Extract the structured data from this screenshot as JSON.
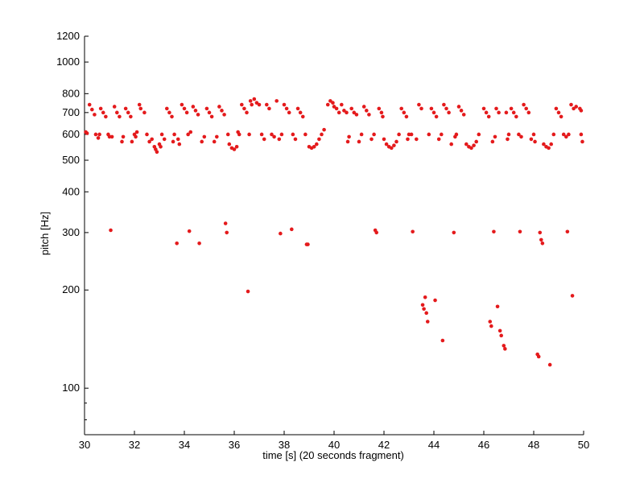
{
  "chart_data": {
    "type": "scatter",
    "title": "",
    "xlabel": "time [s] (20 seconds fragment)",
    "ylabel": "pitch [Hz]",
    "xlim": [
      30,
      50
    ],
    "ylim": [
      72,
      1200
    ],
    "yscale": "log",
    "xticks": [
      "30",
      "32",
      "34",
      "36",
      "38",
      "40",
      "42",
      "44",
      "46",
      "48",
      "50"
    ],
    "yticks": [
      "100",
      "200",
      "300",
      "400",
      "500",
      "600",
      "700",
      "800",
      "1000",
      "1200"
    ],
    "grid": false,
    "legend": "none",
    "marker_color": "#e41a1c",
    "series": [
      {
        "points": [
          [
            30.05,
            610
          ],
          [
            30.1,
            605
          ],
          [
            30.2,
            740
          ],
          [
            30.3,
            715
          ],
          [
            30.4,
            690
          ],
          [
            30.45,
            600
          ],
          [
            30.55,
            585
          ],
          [
            30.6,
            600
          ],
          [
            30.65,
            720
          ],
          [
            30.75,
            700
          ],
          [
            30.85,
            680
          ],
          [
            30.95,
            600
          ],
          [
            31.0,
            590
          ],
          [
            31.05,
            305
          ],
          [
            31.1,
            590
          ],
          [
            31.2,
            730
          ],
          [
            31.3,
            700
          ],
          [
            31.4,
            680
          ],
          [
            31.5,
            570
          ],
          [
            31.55,
            590
          ],
          [
            31.65,
            720
          ],
          [
            31.75,
            700
          ],
          [
            31.85,
            680
          ],
          [
            31.9,
            570
          ],
          [
            32.0,
            600
          ],
          [
            32.05,
            590
          ],
          [
            32.1,
            610
          ],
          [
            32.2,
            740
          ],
          [
            32.25,
            720
          ],
          [
            32.4,
            700
          ],
          [
            32.5,
            600
          ],
          [
            32.6,
            570
          ],
          [
            32.7,
            580
          ],
          [
            32.8,
            550
          ],
          [
            32.85,
            540
          ],
          [
            32.9,
            530
          ],
          [
            33.0,
            560
          ],
          [
            33.05,
            550
          ],
          [
            33.1,
            600
          ],
          [
            33.2,
            580
          ],
          [
            33.3,
            720
          ],
          [
            33.4,
            700
          ],
          [
            33.5,
            680
          ],
          [
            33.55,
            570
          ],
          [
            33.6,
            600
          ],
          [
            33.7,
            278
          ],
          [
            33.75,
            580
          ],
          [
            33.8,
            560
          ],
          [
            33.9,
            740
          ],
          [
            34.0,
            720
          ],
          [
            34.1,
            700
          ],
          [
            34.15,
            600
          ],
          [
            34.2,
            303
          ],
          [
            34.25,
            610
          ],
          [
            34.35,
            730
          ],
          [
            34.45,
            710
          ],
          [
            34.55,
            690
          ],
          [
            34.6,
            278
          ],
          [
            34.7,
            570
          ],
          [
            34.8,
            590
          ],
          [
            34.9,
            720
          ],
          [
            35.0,
            700
          ],
          [
            35.1,
            680
          ],
          [
            35.2,
            570
          ],
          [
            35.3,
            590
          ],
          [
            35.4,
            730
          ],
          [
            35.5,
            710
          ],
          [
            35.6,
            690
          ],
          [
            35.65,
            320
          ],
          [
            35.7,
            300
          ],
          [
            35.75,
            600
          ],
          [
            35.8,
            560
          ],
          [
            35.9,
            545
          ],
          [
            36.0,
            540
          ],
          [
            36.1,
            550
          ],
          [
            36.15,
            610
          ],
          [
            36.2,
            600
          ],
          [
            36.3,
            740
          ],
          [
            36.4,
            720
          ],
          [
            36.5,
            700
          ],
          [
            36.55,
            198
          ],
          [
            36.6,
            600
          ],
          [
            36.65,
            760
          ],
          [
            36.7,
            740
          ],
          [
            36.8,
            770
          ],
          [
            36.9,
            750
          ],
          [
            37.0,
            740
          ],
          [
            37.1,
            600
          ],
          [
            37.2,
            580
          ],
          [
            37.3,
            740
          ],
          [
            37.4,
            720
          ],
          [
            37.5,
            600
          ],
          [
            37.6,
            590
          ],
          [
            37.7,
            760
          ],
          [
            37.8,
            580
          ],
          [
            37.85,
            298
          ],
          [
            37.9,
            600
          ],
          [
            38.0,
            740
          ],
          [
            38.1,
            720
          ],
          [
            38.2,
            700
          ],
          [
            38.3,
            307
          ],
          [
            38.35,
            600
          ],
          [
            38.45,
            580
          ],
          [
            38.55,
            720
          ],
          [
            38.65,
            700
          ],
          [
            38.75,
            680
          ],
          [
            38.85,
            600
          ],
          [
            38.9,
            276
          ],
          [
            38.95,
            276
          ],
          [
            39.0,
            550
          ],
          [
            39.1,
            545
          ],
          [
            39.2,
            550
          ],
          [
            39.3,
            560
          ],
          [
            39.4,
            580
          ],
          [
            39.5,
            600
          ],
          [
            39.6,
            620
          ],
          [
            39.75,
            740
          ],
          [
            39.85,
            760
          ],
          [
            39.95,
            750
          ],
          [
            40.0,
            730
          ],
          [
            40.1,
            720
          ],
          [
            40.2,
            700
          ],
          [
            40.3,
            740
          ],
          [
            40.4,
            710
          ],
          [
            40.5,
            700
          ],
          [
            40.55,
            570
          ],
          [
            40.6,
            590
          ],
          [
            40.7,
            720
          ],
          [
            40.8,
            700
          ],
          [
            40.9,
            690
          ],
          [
            41.0,
            570
          ],
          [
            41.1,
            600
          ],
          [
            41.2,
            730
          ],
          [
            41.3,
            710
          ],
          [
            41.4,
            690
          ],
          [
            41.5,
            580
          ],
          [
            41.6,
            600
          ],
          [
            41.65,
            305
          ],
          [
            41.7,
            300
          ],
          [
            41.8,
            720
          ],
          [
            41.9,
            700
          ],
          [
            41.95,
            680
          ],
          [
            42.0,
            580
          ],
          [
            42.1,
            560
          ],
          [
            42.2,
            550
          ],
          [
            42.3,
            545
          ],
          [
            42.4,
            555
          ],
          [
            42.5,
            570
          ],
          [
            42.6,
            600
          ],
          [
            42.7,
            720
          ],
          [
            42.8,
            700
          ],
          [
            42.9,
            680
          ],
          [
            42.95,
            580
          ],
          [
            43.0,
            600
          ],
          [
            43.1,
            600
          ],
          [
            43.15,
            302
          ],
          [
            43.3,
            580
          ],
          [
            43.4,
            740
          ],
          [
            43.5,
            720
          ],
          [
            43.55,
            180
          ],
          [
            43.6,
            175
          ],
          [
            43.65,
            190
          ],
          [
            43.7,
            170
          ],
          [
            43.75,
            160
          ],
          [
            43.8,
            600
          ],
          [
            43.9,
            720
          ],
          [
            44.0,
            700
          ],
          [
            44.05,
            186
          ],
          [
            44.1,
            680
          ],
          [
            44.2,
            580
          ],
          [
            44.3,
            600
          ],
          [
            44.35,
            140
          ],
          [
            44.4,
            740
          ],
          [
            44.5,
            720
          ],
          [
            44.6,
            700
          ],
          [
            44.7,
            560
          ],
          [
            44.8,
            300
          ],
          [
            44.85,
            590
          ],
          [
            44.9,
            600
          ],
          [
            45.0,
            730
          ],
          [
            45.1,
            710
          ],
          [
            45.2,
            690
          ],
          [
            45.3,
            560
          ],
          [
            45.4,
            550
          ],
          [
            45.5,
            545
          ],
          [
            45.6,
            555
          ],
          [
            45.7,
            570
          ],
          [
            45.8,
            600
          ],
          [
            46.0,
            720
          ],
          [
            46.1,
            700
          ],
          [
            46.2,
            680
          ],
          [
            46.25,
            160
          ],
          [
            46.3,
            155
          ],
          [
            46.35,
            570
          ],
          [
            46.4,
            302
          ],
          [
            46.45,
            590
          ],
          [
            46.5,
            720
          ],
          [
            46.55,
            178
          ],
          [
            46.6,
            700
          ],
          [
            46.65,
            150
          ],
          [
            46.7,
            145
          ],
          [
            46.8,
            135
          ],
          [
            46.85,
            132
          ],
          [
            46.9,
            700
          ],
          [
            46.95,
            580
          ],
          [
            47.0,
            600
          ],
          [
            47.1,
            720
          ],
          [
            47.2,
            700
          ],
          [
            47.3,
            680
          ],
          [
            47.4,
            600
          ],
          [
            47.45,
            302
          ],
          [
            47.5,
            590
          ],
          [
            47.6,
            740
          ],
          [
            47.7,
            720
          ],
          [
            47.8,
            700
          ],
          [
            47.9,
            580
          ],
          [
            48.0,
            600
          ],
          [
            48.05,
            570
          ],
          [
            48.15,
            127
          ],
          [
            48.2,
            125
          ],
          [
            48.25,
            300
          ],
          [
            48.3,
            285
          ],
          [
            48.35,
            278
          ],
          [
            48.4,
            560
          ],
          [
            48.5,
            550
          ],
          [
            48.6,
            545
          ],
          [
            48.65,
            118
          ],
          [
            48.7,
            560
          ],
          [
            48.8,
            600
          ],
          [
            48.9,
            720
          ],
          [
            49.0,
            700
          ],
          [
            49.1,
            680
          ],
          [
            49.2,
            600
          ],
          [
            49.3,
            590
          ],
          [
            49.35,
            302
          ],
          [
            49.4,
            600
          ],
          [
            49.5,
            740
          ],
          [
            49.55,
            192
          ],
          [
            49.6,
            720
          ],
          [
            49.7,
            730
          ],
          [
            49.85,
            720
          ],
          [
            49.9,
            710
          ],
          [
            49.95,
            570
          ],
          [
            49.9,
            600
          ]
        ]
      }
    ]
  }
}
